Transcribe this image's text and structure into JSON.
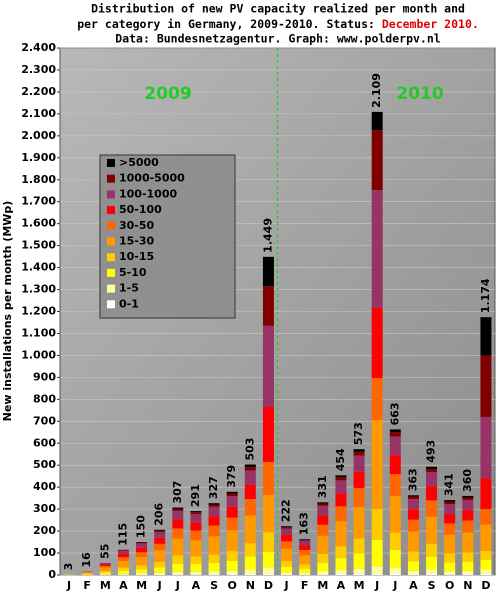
{
  "chart_data": {
    "type": "stacked_bar",
    "title": [
      "Distribution of new PV capacity realized per month and",
      "per category in Germany, 2009-2010. Status:",
      "December 2010.",
      "Data: Bundesnetzagentur. Graph: www.polderpv.nl"
    ],
    "ylabel": "New installations per month (MWp)",
    "annotations": [
      "2009",
      "2010"
    ],
    "categories": [
      "J",
      "F",
      "M",
      "A",
      "M",
      "J",
      "J",
      "A",
      "S",
      "O",
      "N",
      "D",
      "J",
      "F",
      "M",
      "A",
      "M",
      "J",
      "J",
      "A",
      "S",
      "O",
      "N",
      "D"
    ],
    "series": [
      {
        "name": "0-1",
        "color": "#ffffff",
        "values": [
          0,
          0,
          1,
          1,
          2,
          2,
          3,
          3,
          3,
          4,
          5,
          5,
          2,
          2,
          3,
          5,
          6,
          5,
          7,
          4,
          5,
          3,
          4,
          5
        ]
      },
      {
        "name": "1-5",
        "color": "#ffff99",
        "values": [
          0,
          1,
          3,
          5,
          6,
          8,
          12,
          12,
          13,
          15,
          20,
          30,
          9,
          7,
          13,
          18,
          23,
          35,
          27,
          15,
          20,
          14,
          14,
          20
        ]
      },
      {
        "name": "5-10",
        "color": "#ffff00",
        "values": [
          1,
          3,
          7,
          14,
          18,
          25,
          37,
          35,
          39,
          45,
          60,
          70,
          27,
          20,
          40,
          54,
          69,
          120,
          80,
          44,
          59,
          41,
          43,
          45
        ]
      },
      {
        "name": "10-15",
        "color": "#ffcc00",
        "values": [
          1,
          3,
          7,
          14,
          18,
          25,
          37,
          35,
          39,
          45,
          60,
          90,
          27,
          20,
          40,
          54,
          69,
          140,
          80,
          44,
          59,
          41,
          43,
          40
        ]
      },
      {
        "name": "15-30",
        "color": "#ff9900",
        "values": [
          1,
          5,
          15,
          30,
          38,
          52,
          77,
          73,
          82,
          95,
          126,
          170,
          55,
          41,
          83,
          114,
          143,
          406,
          166,
          91,
          123,
          85,
          90,
          120
        ]
      },
      {
        "name": "30-50",
        "color": "#ff6600",
        "values": [
          0,
          2,
          8,
          17,
          22,
          30,
          46,
          44,
          49,
          57,
          75,
          150,
          33,
          24,
          50,
          68,
          86,
          191,
          99,
          54,
          74,
          51,
          54,
          70
        ]
      },
      {
        "name": "50-100",
        "color": "#ff0000",
        "values": [
          0,
          1,
          7,
          15,
          20,
          27,
          40,
          38,
          43,
          49,
          65,
          250,
          29,
          21,
          43,
          59,
          74,
          319,
          86,
          47,
          64,
          44,
          47,
          140
        ]
      },
      {
        "name": "100-1000",
        "color": "#993366",
        "values": [
          0,
          1,
          7,
          15,
          20,
          27,
          40,
          38,
          43,
          49,
          65,
          370,
          29,
          21,
          43,
          59,
          74,
          537,
          86,
          47,
          64,
          44,
          47,
          280
        ]
      },
      {
        "name": "1000-5000",
        "color": "#800000",
        "values": [
          0,
          0,
          0,
          4,
          4,
          6,
          9,
          8,
          10,
          12,
          15,
          180,
          7,
          4,
          10,
          14,
          17,
          273,
          20,
          11,
          15,
          10,
          11,
          280
        ]
      },
      {
        "name": ">5000",
        "color": "#000000",
        "values": [
          0,
          0,
          0,
          0,
          2,
          4,
          6,
          5,
          6,
          8,
          12,
          134,
          4,
          3,
          6,
          9,
          12,
          83,
          12,
          6,
          10,
          8,
          7,
          174
        ]
      }
    ],
    "totals": {
      "values": [
        3,
        16,
        55,
        115,
        150,
        206,
        307,
        291,
        327,
        379,
        503,
        1449,
        222,
        163,
        331,
        454,
        573,
        2109,
        663,
        363,
        493,
        341,
        360,
        1174
      ],
      "value_labels": [
        "3",
        "16",
        "55",
        "115",
        "150",
        "206",
        "307",
        "291",
        "327",
        "379",
        "503",
        "1.449",
        "222",
        "163",
        "331",
        "454",
        "573",
        "2.109",
        "663",
        "363",
        "493",
        "341",
        "360",
        "1.174"
      ]
    },
    "ylim": [
      0,
      2400
    ],
    "yticks": [
      0,
      100,
      200,
      300,
      400,
      500,
      600,
      700,
      800,
      900,
      {
        "value": 1000,
        "label": "1.000"
      },
      {
        "value": 1100,
        "label": "1.100"
      },
      {
        "value": 1200,
        "label": "1.200"
      },
      {
        "value": 1300,
        "label": "1.300"
      },
      {
        "value": 1400,
        "label": "1.400"
      },
      {
        "value": 1500,
        "label": "1.500"
      },
      {
        "value": 1600,
        "label": "1.600"
      },
      {
        "value": 1700,
        "label": "1.700"
      },
      {
        "value": 1800,
        "label": "1.800"
      },
      {
        "value": 1900,
        "label": "1.900"
      },
      {
        "value": 2000,
        "label": "2.000"
      },
      {
        "value": 2100,
        "label": "2.100"
      },
      {
        "value": 2200,
        "label": "2.200"
      },
      {
        "value": 2300,
        "label": "2.300"
      },
      {
        "value": 2400,
        "label": "2.400"
      }
    ],
    "grid": true,
    "legend": "upper left"
  }
}
